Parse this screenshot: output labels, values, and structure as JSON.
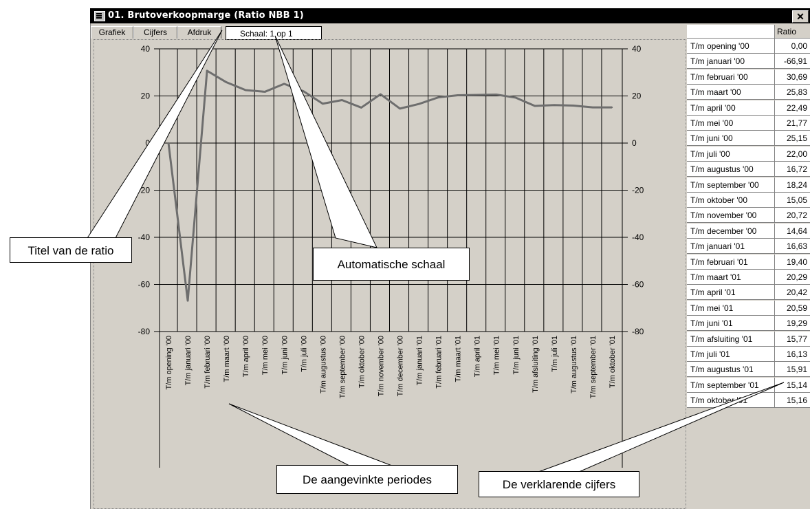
{
  "window": {
    "title": "01. Brutoverkoopmarge (Ratio NBB 1)",
    "close_glyph": "✕"
  },
  "tabs": [
    "Grafiek",
    "Cijfers",
    "Afdruk"
  ],
  "scale_label": "Schaal: 1 op 1",
  "table": {
    "header_ratio": "Ratio",
    "rows": [
      {
        "label": "T/m opening '00",
        "value": "0,00"
      },
      {
        "label": "T/m januari '00",
        "value": "-66,91"
      },
      {
        "label": "T/m februari '00",
        "value": "30,69"
      },
      {
        "label": "T/m maart '00",
        "value": "25,83"
      },
      {
        "label": "T/m april '00",
        "value": "22,49"
      },
      {
        "label": "T/m mei '00",
        "value": "21,77"
      },
      {
        "label": "T/m juni '00",
        "value": "25,15"
      },
      {
        "label": "T/m juli '00",
        "value": "22,00"
      },
      {
        "label": "T/m augustus '00",
        "value": "16,72"
      },
      {
        "label": "T/m september '00",
        "value": "18,24"
      },
      {
        "label": "T/m oktober '00",
        "value": "15,05"
      },
      {
        "label": "T/m november '00",
        "value": "20,72"
      },
      {
        "label": "T/m december '00",
        "value": "14,64"
      },
      {
        "label": "T/m januari '01",
        "value": "16,63"
      },
      {
        "label": "T/m februari '01",
        "value": "19,40"
      },
      {
        "label": "T/m maart '01",
        "value": "20,29"
      },
      {
        "label": "T/m april '01",
        "value": "20,42"
      },
      {
        "label": "T/m mei '01",
        "value": "20,59"
      },
      {
        "label": "T/m juni '01",
        "value": "19,29"
      },
      {
        "label": "T/m afsluiting '01",
        "value": "15,77"
      },
      {
        "label": "T/m juli '01",
        "value": "16,13"
      },
      {
        "label": "T/m augustus '01",
        "value": "15,91"
      },
      {
        "label": "T/m september '01",
        "value": "15,14"
      },
      {
        "label": "T/m oktober '01",
        "value": "15,16"
      }
    ]
  },
  "callouts": {
    "titel": "Titel van de ratio",
    "schaal": "Automatische schaal",
    "periodes": "De aangevinkte periodes",
    "cijfers": "De verklarende cijfers"
  },
  "colors": {
    "line": "#6e6e6e",
    "window_bg": "#d4d0c8",
    "titlebar": "#000000"
  },
  "chart_data": {
    "type": "line",
    "categories": [
      "T/m opening '00",
      "T/m januari '00",
      "T/m februari '00",
      "T/m maart '00",
      "T/m april '00",
      "T/m mei '00",
      "T/m juni '00",
      "T/m juli '00",
      "T/m augustus '00",
      "T/m september '00",
      "T/m oktober '00",
      "T/m november '00",
      "T/m december '00",
      "T/m januari '01",
      "T/m februari '01",
      "T/m maart '01",
      "T/m april '01",
      "T/m mei '01",
      "T/m juni '01",
      "T/m afsluiting '01",
      "T/m juli '01",
      "T/m augustus '01",
      "T/m september '01",
      "T/m oktober '01"
    ],
    "series": [
      {
        "values": [
          0.0,
          -66.91,
          30.69,
          25.83,
          22.49,
          21.77,
          25.15,
          22.0,
          16.72,
          18.24,
          15.05,
          20.72,
          14.64,
          16.63,
          19.4,
          20.29,
          20.42,
          20.59,
          19.29,
          15.77,
          16.13,
          15.91,
          15.14,
          15.16
        ]
      }
    ],
    "yticks": [
      "40",
      "20",
      "0",
      "-20",
      "-40",
      "-60",
      "-80"
    ],
    "ylim": [
      -80,
      40
    ],
    "grid": true,
    "legend": "none"
  }
}
